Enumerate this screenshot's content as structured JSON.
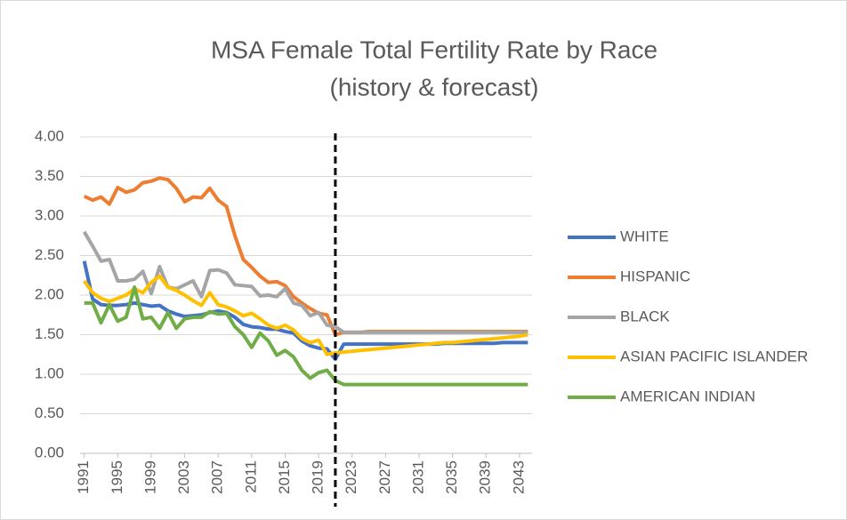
{
  "chart_data": {
    "type": "line",
    "title": "MSA Female Total Fertility Rate by Race",
    "subtitle": "(history & forecast)",
    "x": [
      1991,
      1992,
      1993,
      1994,
      1995,
      1996,
      1997,
      1998,
      1999,
      2000,
      2001,
      2002,
      2003,
      2004,
      2005,
      2006,
      2007,
      2008,
      2009,
      2010,
      2011,
      2012,
      2013,
      2014,
      2015,
      2016,
      2017,
      2018,
      2019,
      2020,
      2021,
      2022,
      2023,
      2024,
      2025,
      2026,
      2027,
      2028,
      2029,
      2030,
      2031,
      2032,
      2033,
      2034,
      2035,
      2036,
      2037,
      2038,
      2039,
      2040,
      2041,
      2042,
      2043,
      2044
    ],
    "xlim": [
      1990.5,
      2044.5
    ],
    "xticks": [
      1991,
      1995,
      1999,
      2003,
      2007,
      2011,
      2015,
      2019,
      2023,
      2027,
      2031,
      2035,
      2039,
      2043
    ],
    "ylim": [
      0,
      4
    ],
    "yticks": [
      {
        "value": 0,
        "label": "0.00"
      },
      {
        "value": 0.5,
        "label": "0.50"
      },
      {
        "value": 1,
        "label": "1.00"
      },
      {
        "value": 1.5,
        "label": "1.50"
      },
      {
        "value": 2,
        "label": "2.00"
      },
      {
        "value": 2.5,
        "label": "2.50"
      },
      {
        "value": 3,
        "label": "3.00"
      },
      {
        "value": 3.5,
        "label": "3.50"
      },
      {
        "value": 4,
        "label": "4.00"
      }
    ],
    "grid": true,
    "legend": "right",
    "vline": 2021,
    "series": [
      {
        "name": "WHITE",
        "color": "#4472c4",
        "values": [
          2.43,
          1.95,
          1.88,
          1.87,
          1.87,
          1.88,
          1.9,
          1.88,
          1.86,
          1.87,
          1.8,
          1.76,
          1.73,
          1.74,
          1.75,
          1.78,
          1.8,
          1.78,
          1.72,
          1.63,
          1.6,
          1.59,
          1.57,
          1.57,
          1.54,
          1.52,
          1.42,
          1.36,
          1.33,
          1.32,
          1.19,
          1.38,
          1.38,
          1.38,
          1.38,
          1.38,
          1.38,
          1.38,
          1.38,
          1.38,
          1.38,
          1.38,
          1.38,
          1.39,
          1.39,
          1.39,
          1.39,
          1.39,
          1.39,
          1.39,
          1.4,
          1.4,
          1.4,
          1.4
        ]
      },
      {
        "name": "HISPANIC",
        "color": "#ed7d31",
        "values": [
          3.25,
          3.2,
          3.24,
          3.15,
          3.36,
          3.3,
          3.33,
          3.42,
          3.44,
          3.48,
          3.46,
          3.35,
          3.18,
          3.24,
          3.23,
          3.35,
          3.2,
          3.12,
          2.75,
          2.45,
          2.35,
          2.24,
          2.16,
          2.17,
          2.12,
          1.98,
          1.9,
          1.83,
          1.77,
          1.75,
          1.5,
          1.53,
          1.53,
          1.53,
          1.54,
          1.54,
          1.54,
          1.54,
          1.54,
          1.54,
          1.54,
          1.54,
          1.54,
          1.54,
          1.54,
          1.54,
          1.54,
          1.54,
          1.54,
          1.54,
          1.54,
          1.54,
          1.54,
          1.54
        ]
      },
      {
        "name": "BLACK",
        "color": "#a5a5a5",
        "values": [
          2.8,
          2.62,
          2.43,
          2.45,
          2.18,
          2.18,
          2.2,
          2.3,
          2.02,
          2.36,
          2.1,
          2.08,
          2.13,
          2.18,
          1.98,
          2.31,
          2.32,
          2.28,
          2.13,
          2.12,
          2.11,
          1.99,
          2.0,
          1.98,
          2.08,
          1.9,
          1.87,
          1.74,
          1.78,
          1.62,
          1.6,
          1.53,
          1.53,
          1.53,
          1.53,
          1.53,
          1.53,
          1.53,
          1.53,
          1.53,
          1.53,
          1.53,
          1.53,
          1.53,
          1.53,
          1.53,
          1.53,
          1.53,
          1.53,
          1.53,
          1.53,
          1.53,
          1.53,
          1.53
        ]
      },
      {
        "name": "ASIAN PACIFIC ISLANDER",
        "color": "#ffc000",
        "values": [
          2.18,
          2.03,
          1.96,
          1.92,
          1.96,
          2.0,
          2.08,
          2.03,
          2.16,
          2.24,
          2.1,
          2.06,
          2.0,
          1.93,
          1.87,
          2.03,
          1.88,
          1.85,
          1.8,
          1.74,
          1.77,
          1.7,
          1.62,
          1.58,
          1.62,
          1.56,
          1.45,
          1.4,
          1.43,
          1.25,
          1.27,
          1.28,
          1.29,
          1.3,
          1.31,
          1.32,
          1.33,
          1.34,
          1.35,
          1.36,
          1.37,
          1.38,
          1.39,
          1.4,
          1.4,
          1.41,
          1.42,
          1.43,
          1.44,
          1.45,
          1.46,
          1.47,
          1.48,
          1.5
        ]
      },
      {
        "name": "AMERICAN INDIAN",
        "color": "#70ad47",
        "values": [
          1.9,
          1.9,
          1.65,
          1.88,
          1.67,
          1.72,
          2.1,
          1.7,
          1.72,
          1.58,
          1.78,
          1.58,
          1.7,
          1.72,
          1.72,
          1.79,
          1.76,
          1.77,
          1.6,
          1.5,
          1.34,
          1.52,
          1.42,
          1.24,
          1.3,
          1.22,
          1.05,
          0.95,
          1.02,
          1.05,
          0.92,
          0.87,
          0.87,
          0.87,
          0.87,
          0.87,
          0.87,
          0.87,
          0.87,
          0.87,
          0.87,
          0.87,
          0.87,
          0.87,
          0.87,
          0.87,
          0.87,
          0.87,
          0.87,
          0.87,
          0.87,
          0.87,
          0.87,
          0.87
        ]
      }
    ]
  }
}
